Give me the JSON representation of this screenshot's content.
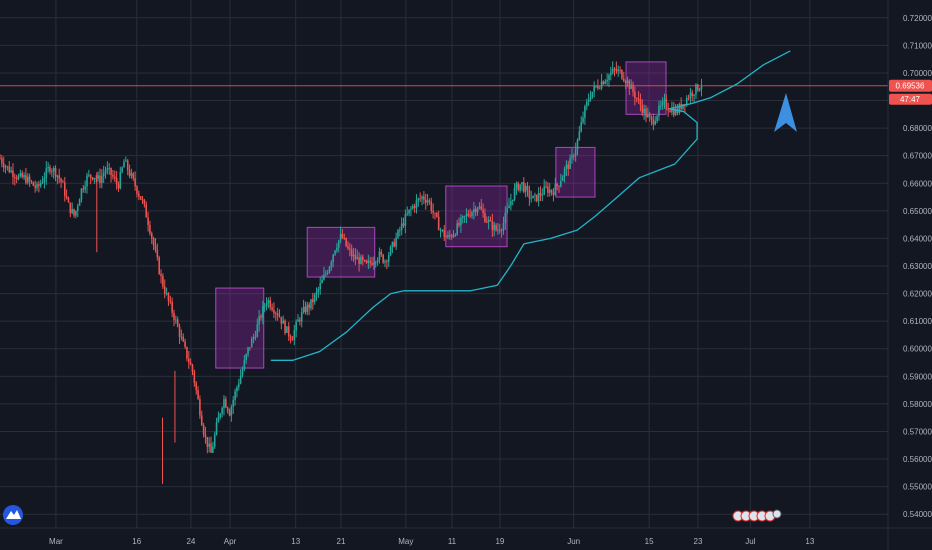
{
  "chart_data": {
    "type": "candlestick",
    "title": "",
    "ylim": [
      0.535,
      0.725
    ],
    "y_ticks": [
      "0.72000",
      "0.71000",
      "0.70000",
      "0.69000",
      "0.68000",
      "0.67000",
      "0.66000",
      "0.65000",
      "0.64000",
      "0.63000",
      "0.62000",
      "0.61000",
      "0.60000",
      "0.59000",
      "0.58000",
      "0.57000",
      "0.56000",
      "0.55000",
      "0.54000"
    ],
    "x_ticks": [
      "Mar",
      "16",
      "24",
      "Apr",
      "13",
      "21",
      "May",
      "11",
      "19",
      "Jun",
      "15",
      "23",
      "Jul",
      "13"
    ],
    "grid": true,
    "current_price": {
      "value": 0.69536,
      "label": "0.69536"
    },
    "countdown_label": "47:47",
    "price_path": [
      0.669,
      0.666,
      0.664,
      0.662,
      0.662,
      0.66,
      0.658,
      0.662,
      0.666,
      0.664,
      0.66,
      0.652,
      0.648,
      0.657,
      0.662,
      0.663,
      0.661,
      0.665,
      0.663,
      0.659,
      0.668,
      0.663,
      0.658,
      0.653,
      0.645,
      0.635,
      0.625,
      0.618,
      0.612,
      0.605,
      0.598,
      0.592,
      0.58,
      0.568,
      0.562,
      0.573,
      0.582,
      0.577,
      0.585,
      0.592,
      0.6,
      0.605,
      0.612,
      0.618,
      0.615,
      0.612,
      0.607,
      0.604,
      0.61,
      0.614,
      0.616,
      0.62,
      0.625,
      0.63,
      0.637,
      0.641,
      0.636,
      0.633,
      0.632,
      0.63,
      0.632,
      0.634,
      0.632,
      0.636,
      0.641,
      0.646,
      0.65,
      0.653,
      0.655,
      0.654,
      0.648,
      0.643,
      0.64,
      0.642,
      0.645,
      0.648,
      0.65,
      0.652,
      0.648,
      0.645,
      0.643,
      0.645,
      0.652,
      0.658,
      0.66,
      0.656,
      0.654,
      0.656,
      0.658,
      0.657,
      0.66,
      0.665,
      0.668,
      0.675,
      0.685,
      0.692,
      0.695,
      0.697,
      0.699,
      0.701,
      0.7,
      0.697,
      0.693,
      0.689,
      0.685,
      0.682,
      0.686,
      0.689,
      0.687,
      0.686,
      0.689,
      0.692,
      0.694,
      0.696
    ],
    "range_boxes": [
      {
        "x_start": 0.243,
        "x_end": 0.297,
        "y_top": 0.622,
        "y_bottom": 0.593
      },
      {
        "x_start": 0.346,
        "x_end": 0.422,
        "y_top": 0.644,
        "y_bottom": 0.626
      },
      {
        "x_start": 0.502,
        "x_end": 0.571,
        "y_top": 0.659,
        "y_bottom": 0.637
      },
      {
        "x_start": 0.626,
        "x_end": 0.67,
        "y_top": 0.673,
        "y_bottom": 0.655
      },
      {
        "x_start": 0.705,
        "x_end": 0.75,
        "y_top": 0.704,
        "y_bottom": 0.685
      }
    ],
    "curve": [
      [
        0.305,
        0.5958
      ],
      [
        0.33,
        0.5958
      ],
      [
        0.36,
        0.599
      ],
      [
        0.39,
        0.606
      ],
      [
        0.42,
        0.615
      ],
      [
        0.44,
        0.62
      ],
      [
        0.455,
        0.621
      ],
      [
        0.48,
        0.621
      ],
      [
        0.53,
        0.621
      ],
      [
        0.56,
        0.623
      ],
      [
        0.575,
        0.63
      ],
      [
        0.59,
        0.638
      ],
      [
        0.62,
        0.64
      ],
      [
        0.65,
        0.643
      ],
      [
        0.67,
        0.648
      ],
      [
        0.695,
        0.655
      ],
      [
        0.72,
        0.662
      ],
      [
        0.76,
        0.667
      ],
      [
        0.785,
        0.676
      ],
      [
        0.785,
        0.682
      ],
      [
        0.77,
        0.686
      ],
      [
        0.754,
        0.687
      ],
      [
        0.78,
        0.689
      ],
      [
        0.8,
        0.691
      ],
      [
        0.83,
        0.696
      ],
      [
        0.86,
        0.703
      ],
      [
        0.89,
        0.708
      ]
    ],
    "arrow": {
      "direction": "up",
      "color": "#3d8fe0"
    }
  },
  "colors": {
    "background": "#131722",
    "grid": "#2a2e39",
    "up_candle": "#26a69a",
    "down_candle": "#ef5350",
    "box_fill": "#9c27b0",
    "box_stroke": "#ab47bc",
    "curve": "#22b5c9",
    "price_line": "#ef5350"
  },
  "icons": {
    "logo": "tradingview-logo-icon",
    "events": "economic-events-icon"
  }
}
